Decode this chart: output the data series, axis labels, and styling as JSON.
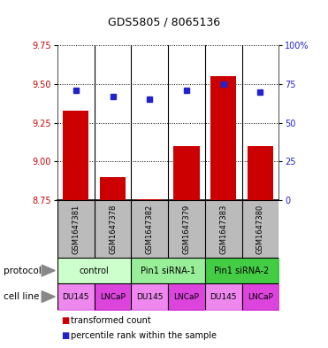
{
  "title": "GDS5805 / 8065136",
  "samples": [
    "GSM1647381",
    "GSM1647378",
    "GSM1647382",
    "GSM1647379",
    "GSM1647383",
    "GSM1647380"
  ],
  "bar_values": [
    9.33,
    8.9,
    8.755,
    9.1,
    9.55,
    9.1
  ],
  "percentile_values": [
    71,
    67,
    65,
    71,
    75,
    70
  ],
  "ylim_left": [
    8.75,
    9.75
  ],
  "ylim_right": [
    0,
    100
  ],
  "yticks_left": [
    8.75,
    9.0,
    9.25,
    9.5,
    9.75
  ],
  "yticks_right": [
    0,
    25,
    50,
    75,
    100
  ],
  "bar_color": "#cc0000",
  "dot_color": "#2222cc",
  "protocol_groups": [
    {
      "label": "control",
      "start": 0,
      "end": 1,
      "color": "#ccffcc"
    },
    {
      "label": "Pin1 siRNA-1",
      "start": 2,
      "end": 3,
      "color": "#99ee99"
    },
    {
      "label": "Pin1 siRNA-2",
      "start": 4,
      "end": 5,
      "color": "#44cc44"
    }
  ],
  "cell_lines": [
    "DU145",
    "LNCaP",
    "DU145",
    "LNCaP",
    "DU145",
    "LNCaP"
  ],
  "cell_line_colors": [
    "#ee88ee",
    "#dd44dd",
    "#ee88ee",
    "#dd44dd",
    "#ee88ee",
    "#dd44dd"
  ],
  "protocol_label": "protocol",
  "cell_line_label": "cell line",
  "legend_bar_label": "transformed count",
  "legend_dot_label": "percentile rank within the sample",
  "base_value": 8.75,
  "sample_row_color": "#bbbbbb",
  "arrow_color": "#888888"
}
